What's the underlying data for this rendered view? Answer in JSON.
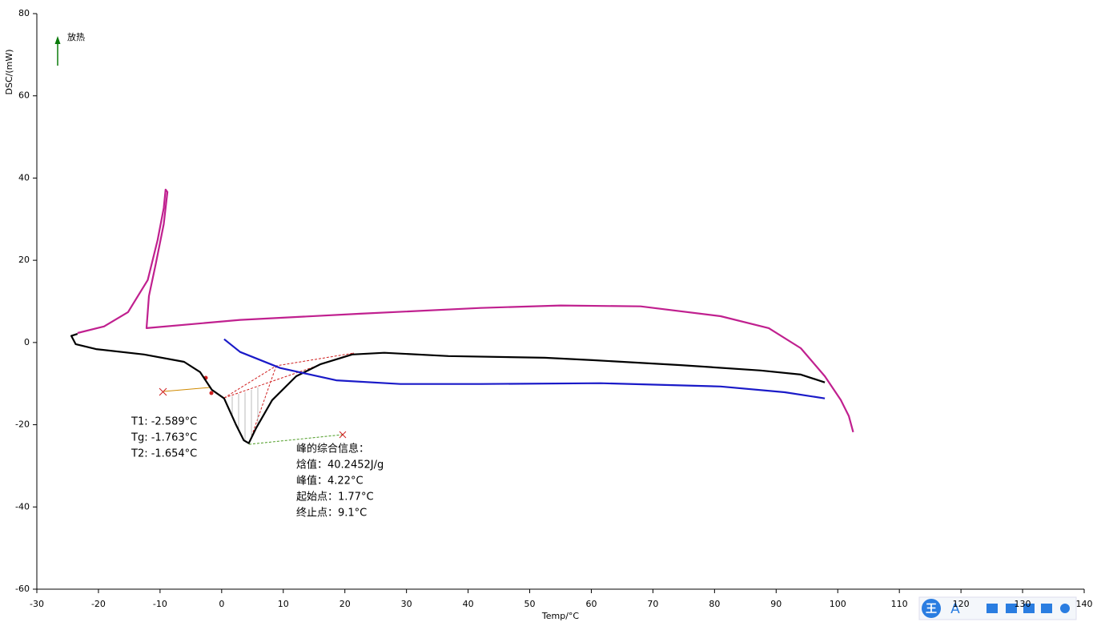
{
  "chart_data": {
    "type": "line",
    "xlabel": "Temp/°C",
    "ylabel": "DSC/(mW)",
    "marker_label": "放热",
    "xlim": [
      -30,
      140
    ],
    "xticks": [
      -30,
      -20,
      -10,
      0,
      10,
      20,
      30,
      40,
      50,
      60,
      70,
      80,
      90,
      100,
      110,
      120,
      130,
      140
    ],
    "ylim": [
      -60,
      80
    ],
    "yticks": [
      -60,
      -40,
      -20,
      0,
      20,
      40,
      60,
      80
    ],
    "series": [
      {
        "color": "#c0208f",
        "x": [
          -23.4,
          -19.1,
          -15.2,
          -12.0,
          -10.4,
          -9.4,
          -9.1,
          -8.8,
          -9.4,
          -10.7,
          -11.8,
          -12.2,
          3.0,
          22.5,
          42.0,
          55.0,
          68.0,
          81.0,
          88.8,
          94.0,
          97.9,
          100.5,
          101.8,
          102.5
        ],
        "values": [
          2.3,
          3.9,
          7.4,
          15.2,
          24.9,
          32.7,
          37.2,
          36.6,
          28.8,
          19.1,
          11.3,
          3.5,
          5.5,
          7.0,
          8.4,
          9.0,
          8.8,
          6.4,
          3.5,
          -1.4,
          -8.2,
          -14.0,
          -17.9,
          -21.8
        ]
      },
      {
        "color": "#000000",
        "x": [
          -23.4,
          -24.4,
          -23.7,
          -20.4,
          -12.6,
          -6.1,
          -3.5,
          -1.6,
          0.4,
          2.3,
          3.6,
          4.4,
          5.6,
          8.2,
          12.1,
          16.0,
          21.2,
          26.4,
          36.8,
          52.4,
          60.2,
          74.5,
          87.5,
          94.0,
          97.9
        ],
        "values": [
          2.1,
          1.6,
          -0.4,
          -1.6,
          -2.9,
          -4.7,
          -7.2,
          -11.5,
          -13.6,
          -19.9,
          -23.8,
          -24.5,
          -20.8,
          -14.0,
          -8.2,
          -5.3,
          -2.9,
          -2.5,
          -3.3,
          -3.7,
          -4.3,
          -5.5,
          -6.8,
          -7.8,
          -9.7
        ]
      },
      {
        "color": "#1a1ac8",
        "x": [
          0.4,
          3.0,
          9.5,
          18.6,
          29.0,
          42.0,
          61.5,
          81.0,
          91.4,
          97.9
        ],
        "values": [
          0.8,
          -2.3,
          -6.2,
          -9.2,
          -10.1,
          -10.1,
          -9.9,
          -10.7,
          -12.1,
          -13.6
        ]
      }
    ],
    "glass_transition": [
      "T1: -2.589°C",
      "Tg: -1.763°C",
      "T2: -1.654°C"
    ],
    "peak_info": [
      "峰的综合信息：",
      "焓值：40.2452J/g",
      "峰值：4.22°C",
      "起始点：1.77°C",
      "终止点：9.1°C"
    ]
  },
  "toolbar": [
    "王",
    "A"
  ]
}
